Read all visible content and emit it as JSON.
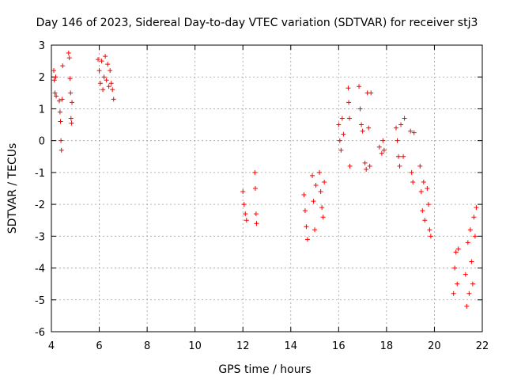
{
  "chart_data": {
    "type": "scatter",
    "title": "Day 146 of 2023, Sidereal Day-to-day VTEC variation (SDTVAR) for receiver stj3",
    "xlabel": "GPS time / hours",
    "ylabel": "SDTVAR / TECUs",
    "xlim": [
      4,
      22
    ],
    "ylim": [
      -6,
      3
    ],
    "xticks": [
      4,
      6,
      8,
      10,
      12,
      14,
      16,
      18,
      20,
      22
    ],
    "yticks": [
      -6,
      -5,
      -4,
      -3,
      -2,
      -1,
      0,
      1,
      2,
      3
    ],
    "xtick_labels": [
      "4",
      "6",
      "8",
      "10",
      "12",
      "14",
      "16",
      "18",
      "20",
      "22"
    ],
    "ytick_labels": [
      "-6",
      "-5",
      "-4",
      "-3",
      "-2",
      "-1",
      "0",
      "1",
      "2",
      "3"
    ],
    "grid": true,
    "marker": "+",
    "series": [
      {
        "name": "SDTVAR",
        "color": "#ff0000",
        "points": [
          [
            4.1,
            2.2
          ],
          [
            4.12,
            1.9
          ],
          [
            4.15,
            1.5
          ],
          [
            4.18,
            2.0
          ],
          [
            4.2,
            1.4
          ],
          [
            4.33,
            1.25
          ],
          [
            4.36,
            0.9
          ],
          [
            4.38,
            0.6
          ],
          [
            4.4,
            0.0
          ],
          [
            4.42,
            -0.3
          ],
          [
            4.45,
            1.3
          ],
          [
            4.47,
            2.35
          ],
          [
            4.72,
            2.75
          ],
          [
            4.75,
            2.6
          ],
          [
            4.78,
            1.95
          ],
          [
            4.8,
            1.5
          ],
          [
            4.82,
            0.7
          ],
          [
            4.84,
            0.55
          ],
          [
            4.86,
            1.2
          ],
          [
            5.95,
            2.55
          ],
          [
            6.0,
            2.2
          ],
          [
            6.05,
            1.8
          ],
          [
            6.1,
            2.5
          ],
          [
            6.15,
            1.6
          ],
          [
            6.2,
            2.0
          ],
          [
            6.25,
            2.65
          ],
          [
            6.3,
            1.9
          ],
          [
            6.35,
            2.4
          ],
          [
            6.4,
            1.7
          ],
          [
            6.45,
            2.2
          ],
          [
            6.5,
            1.8
          ],
          [
            6.55,
            1.6
          ],
          [
            6.6,
            1.3
          ],
          [
            12.0,
            -1.6
          ],
          [
            12.05,
            -2.0
          ],
          [
            12.1,
            -2.3
          ],
          [
            12.15,
            -2.5
          ],
          [
            12.5,
            -1.0
          ],
          [
            12.52,
            -1.5
          ],
          [
            12.55,
            -2.3
          ],
          [
            12.57,
            -2.6
          ],
          [
            14.55,
            -1.7
          ],
          [
            14.6,
            -2.2
          ],
          [
            14.65,
            -2.7
          ],
          [
            14.7,
            -3.1
          ],
          [
            14.9,
            -1.1
          ],
          [
            14.95,
            -1.9
          ],
          [
            15.0,
            -2.8
          ],
          [
            15.05,
            -1.4
          ],
          [
            15.2,
            -1.0
          ],
          [
            15.25,
            -1.6
          ],
          [
            15.3,
            -2.1
          ],
          [
            15.35,
            -2.4
          ],
          [
            15.4,
            -1.3
          ],
          [
            16.0,
            0.5
          ],
          [
            16.05,
            0.0
          ],
          [
            16.1,
            -0.3
          ],
          [
            16.15,
            0.7
          ],
          [
            16.2,
            0.2
          ],
          [
            16.4,
            1.65
          ],
          [
            16.42,
            1.2
          ],
          [
            16.45,
            0.7
          ],
          [
            16.47,
            -0.8
          ],
          [
            16.85,
            1.7
          ],
          [
            16.9,
            1.0
          ],
          [
            16.95,
            0.5
          ],
          [
            17.0,
            0.3
          ],
          [
            17.1,
            -0.7
          ],
          [
            17.15,
            -0.9
          ],
          [
            17.2,
            1.5
          ],
          [
            17.25,
            0.4
          ],
          [
            17.3,
            -0.8
          ],
          [
            17.35,
            1.5
          ],
          [
            17.7,
            -0.2
          ],
          [
            17.8,
            -0.4
          ],
          [
            17.85,
            0.0
          ],
          [
            17.9,
            -0.3
          ],
          [
            18.4,
            0.4
          ],
          [
            18.45,
            0.0
          ],
          [
            18.5,
            -0.5
          ],
          [
            18.55,
            -0.8
          ],
          [
            18.6,
            0.5
          ],
          [
            18.7,
            -0.5
          ],
          [
            18.75,
            0.7
          ],
          [
            19.0,
            0.3
          ],
          [
            19.05,
            -1.0
          ],
          [
            19.1,
            -1.3
          ],
          [
            19.15,
            0.25
          ],
          [
            19.4,
            -0.8
          ],
          [
            19.45,
            -1.6
          ],
          [
            19.5,
            -2.2
          ],
          [
            19.55,
            -1.3
          ],
          [
            19.6,
            -2.5
          ],
          [
            19.7,
            -1.5
          ],
          [
            19.75,
            -2.0
          ],
          [
            19.8,
            -2.8
          ],
          [
            19.85,
            -3.0
          ],
          [
            20.8,
            -4.8
          ],
          [
            20.85,
            -4.0
          ],
          [
            20.9,
            -3.5
          ],
          [
            20.95,
            -4.5
          ],
          [
            21.0,
            -3.4
          ],
          [
            21.3,
            -4.2
          ],
          [
            21.35,
            -5.2
          ],
          [
            21.4,
            -3.2
          ],
          [
            21.45,
            -4.8
          ],
          [
            21.5,
            -2.8
          ],
          [
            21.55,
            -3.8
          ],
          [
            21.6,
            -4.5
          ],
          [
            21.65,
            -2.4
          ],
          [
            21.7,
            -3.0
          ],
          [
            21.75,
            -2.1
          ]
        ]
      }
    ]
  }
}
